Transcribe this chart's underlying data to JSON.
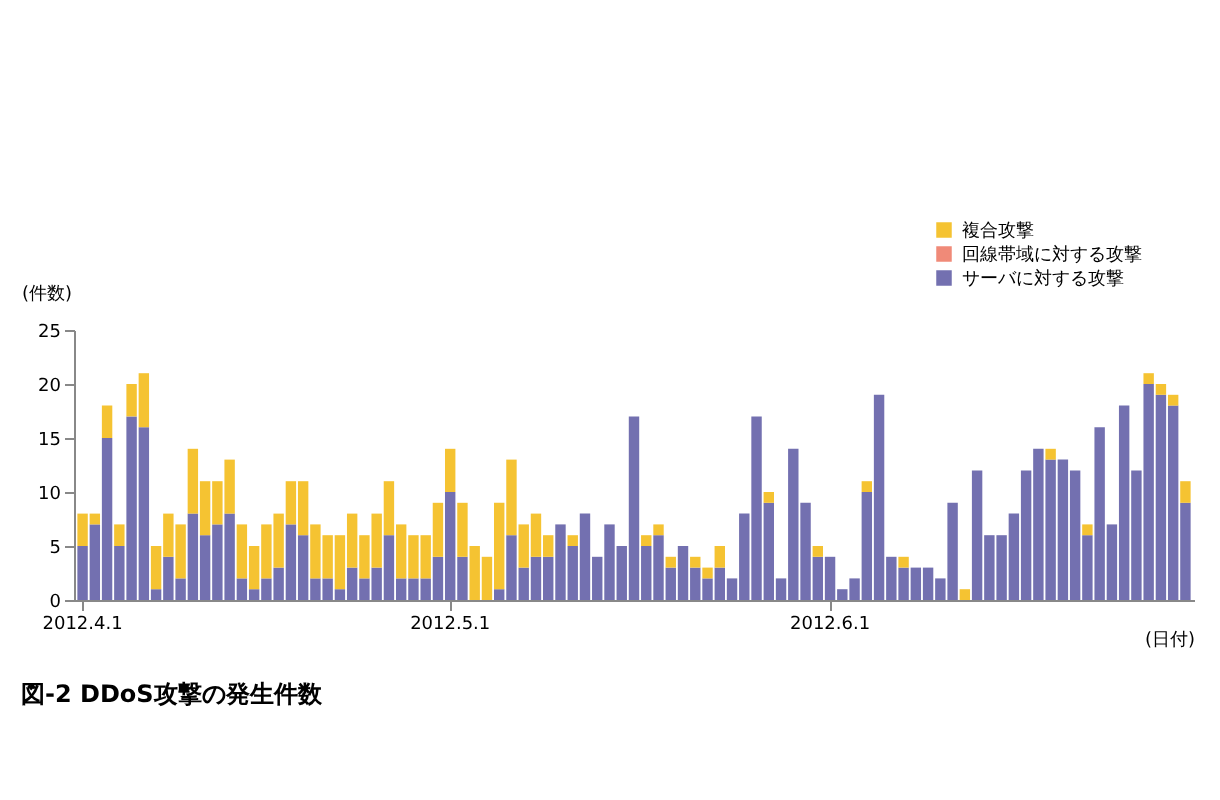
{
  "chart_data": {
    "type": "bar",
    "title": "図-2 DDoS攻撃の発生件数",
    "xlabel": "(日付)",
    "ylabel": "(件数)",
    "categories": [
      "2012.4.1",
      null,
      null,
      null,
      null,
      null,
      null,
      null,
      null,
      null,
      null,
      null,
      null,
      null,
      null,
      null,
      null,
      null,
      null,
      null,
      null,
      null,
      null,
      null,
      null,
      null,
      null,
      null,
      null,
      null,
      "2012.5.1",
      null,
      null,
      null,
      null,
      null,
      null,
      null,
      null,
      null,
      null,
      null,
      null,
      null,
      null,
      null,
      null,
      null,
      null,
      null,
      null,
      null,
      null,
      null,
      null,
      null,
      null,
      null,
      null,
      null,
      null,
      "2012.6.1",
      null,
      null,
      null,
      null,
      null,
      null,
      null,
      null,
      null,
      null,
      null,
      null,
      null,
      null,
      null,
      null,
      null,
      null,
      null,
      null,
      null,
      null,
      null,
      null,
      null,
      null,
      null,
      null,
      null
    ],
    "stacked": true,
    "ylim": [
      0,
      25
    ],
    "yticks": [
      0,
      5,
      10,
      15,
      20,
      25
    ],
    "grid": false,
    "legend": "top right",
    "series": [
      {
        "name": "サーバに対する攻撃",
        "color": "#7370b0",
        "values": [
          5,
          7,
          15,
          5,
          17,
          16,
          1,
          4,
          2,
          8,
          6,
          7,
          8,
          2,
          1,
          2,
          3,
          7,
          6,
          2,
          2,
          1,
          3,
          2,
          3,
          6,
          2,
          2,
          2,
          4,
          10,
          4,
          0,
          0,
          1,
          6,
          3,
          4,
          4,
          7,
          5,
          8,
          4,
          7,
          5,
          17,
          5,
          6,
          3,
          5,
          3,
          2,
          3,
          2,
          8,
          17,
          9,
          2,
          14,
          9,
          4,
          4,
          1,
          2,
          10,
          19,
          4,
          3,
          3,
          3,
          2,
          9,
          0,
          12,
          6,
          6,
          8,
          12,
          14,
          13,
          13,
          12,
          6,
          16,
          7,
          18,
          12,
          20,
          19,
          18,
          9
        ]
      },
      {
        "name": "回線帯域に対する攻撃",
        "color": "#f08a78",
        "values": [
          0,
          0,
          0,
          0,
          0,
          0,
          0,
          0,
          0,
          0,
          0,
          0,
          0,
          0,
          0,
          0,
          0,
          0,
          0,
          0,
          0,
          0,
          0,
          0,
          0,
          0,
          0,
          0,
          0,
          0,
          0,
          0,
          0,
          0,
          0,
          0,
          0,
          0,
          0,
          0,
          0,
          0,
          0,
          0,
          0,
          0,
          0,
          0,
          0,
          0,
          0,
          0,
          0,
          0,
          0,
          0,
          0,
          0,
          0,
          0,
          0,
          0,
          0,
          0,
          0,
          0,
          0,
          0,
          0,
          0,
          0,
          0,
          0,
          0,
          0,
          0,
          0,
          0,
          0,
          0,
          0,
          0,
          0,
          0,
          0,
          0,
          0,
          0,
          0,
          0,
          0
        ]
      },
      {
        "name": "複合攻撃",
        "color": "#f5c332",
        "values": [
          3,
          1,
          3,
          2,
          3,
          5,
          4,
          4,
          5,
          6,
          5,
          4,
          5,
          5,
          4,
          5,
          5,
          4,
          5,
          5,
          4,
          5,
          5,
          4,
          5,
          5,
          5,
          4,
          4,
          5,
          4,
          5,
          5,
          4,
          8,
          7,
          4,
          4,
          2,
          0,
          1,
          0,
          0,
          0,
          0,
          0,
          1,
          1,
          1,
          0,
          1,
          1,
          2,
          0,
          0,
          0,
          1,
          0,
          0,
          0,
          1,
          0,
          0,
          0,
          1,
          0,
          0,
          1,
          0,
          0,
          0,
          0,
          1,
          0,
          0,
          0,
          0,
          0,
          0,
          1,
          0,
          0,
          1,
          0,
          0,
          0,
          0,
          1,
          1,
          1,
          2
        ]
      }
    ]
  }
}
